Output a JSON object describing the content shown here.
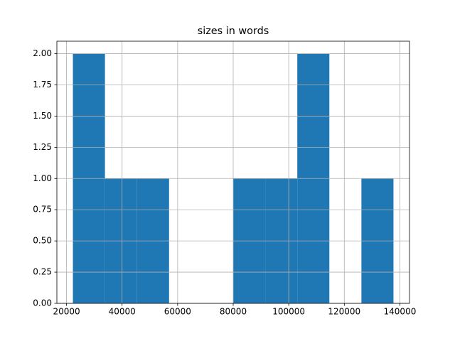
{
  "chart_data": {
    "type": "histogram",
    "title": "sizes in words",
    "bins": [
      22300,
      33840,
      45380,
      56920,
      68460,
      80000,
      91540,
      103080,
      114620,
      126160,
      137700
    ],
    "counts": [
      2,
      1,
      1,
      0,
      0,
      1,
      1,
      2,
      0,
      1
    ],
    "color": "#1f77b4",
    "xlim": [
      16530,
      143470
    ],
    "xticks": [
      20000,
      40000,
      60000,
      80000,
      100000,
      120000,
      140000
    ],
    "ylim": [
      0,
      2.1
    ],
    "yticks": [
      {
        "value": 0,
        "label": "0.00"
      },
      {
        "value": 0.25,
        "label": "0.25"
      },
      {
        "value": 0.5,
        "label": "0.50"
      },
      {
        "value": 0.75,
        "label": "0.75"
      },
      {
        "value": 1,
        "label": "1.00"
      },
      {
        "value": 1.25,
        "label": "1.25"
      },
      {
        "value": 1.5,
        "label": "1.50"
      },
      {
        "value": 1.75,
        "label": "1.75"
      },
      {
        "value": 2,
        "label": "2.00"
      }
    ],
    "grid": true
  }
}
